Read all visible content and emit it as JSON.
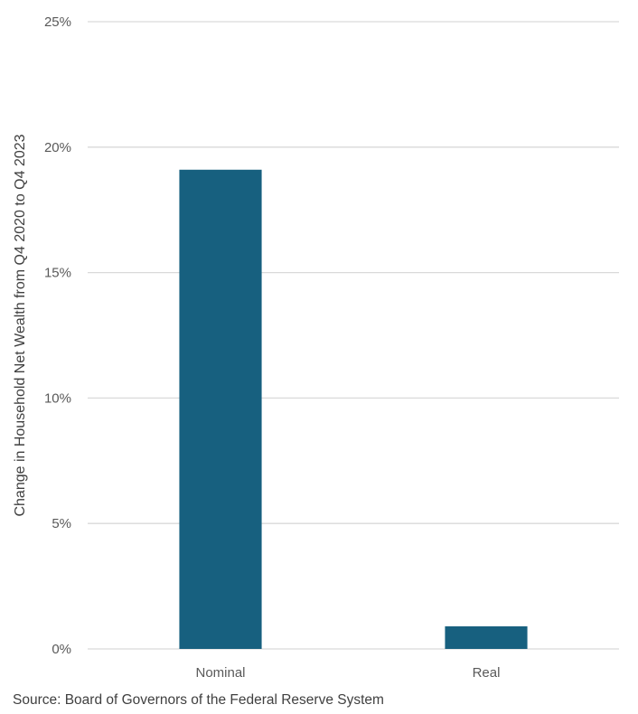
{
  "chart_data": {
    "type": "bar",
    "categories": [
      "Nominal",
      "Real"
    ],
    "values": [
      19.1,
      0.9
    ],
    "title": "",
    "xlabel": "",
    "ylabel": "Change in Household Net Wealth from Q4 2020 to Q4 2023",
    "ylim": [
      0,
      25
    ],
    "yticks": [
      0,
      5,
      10,
      15,
      20,
      25
    ],
    "ytick_labels": [
      "0%",
      "5%",
      "10%",
      "15%",
      "20%",
      "25%"
    ],
    "grid": true,
    "legend": "none",
    "colors": {
      "bar": "#17607f",
      "gridline": "#d9d9d9"
    }
  },
  "source": "Source: Board of Governors of the Federal Reserve System"
}
